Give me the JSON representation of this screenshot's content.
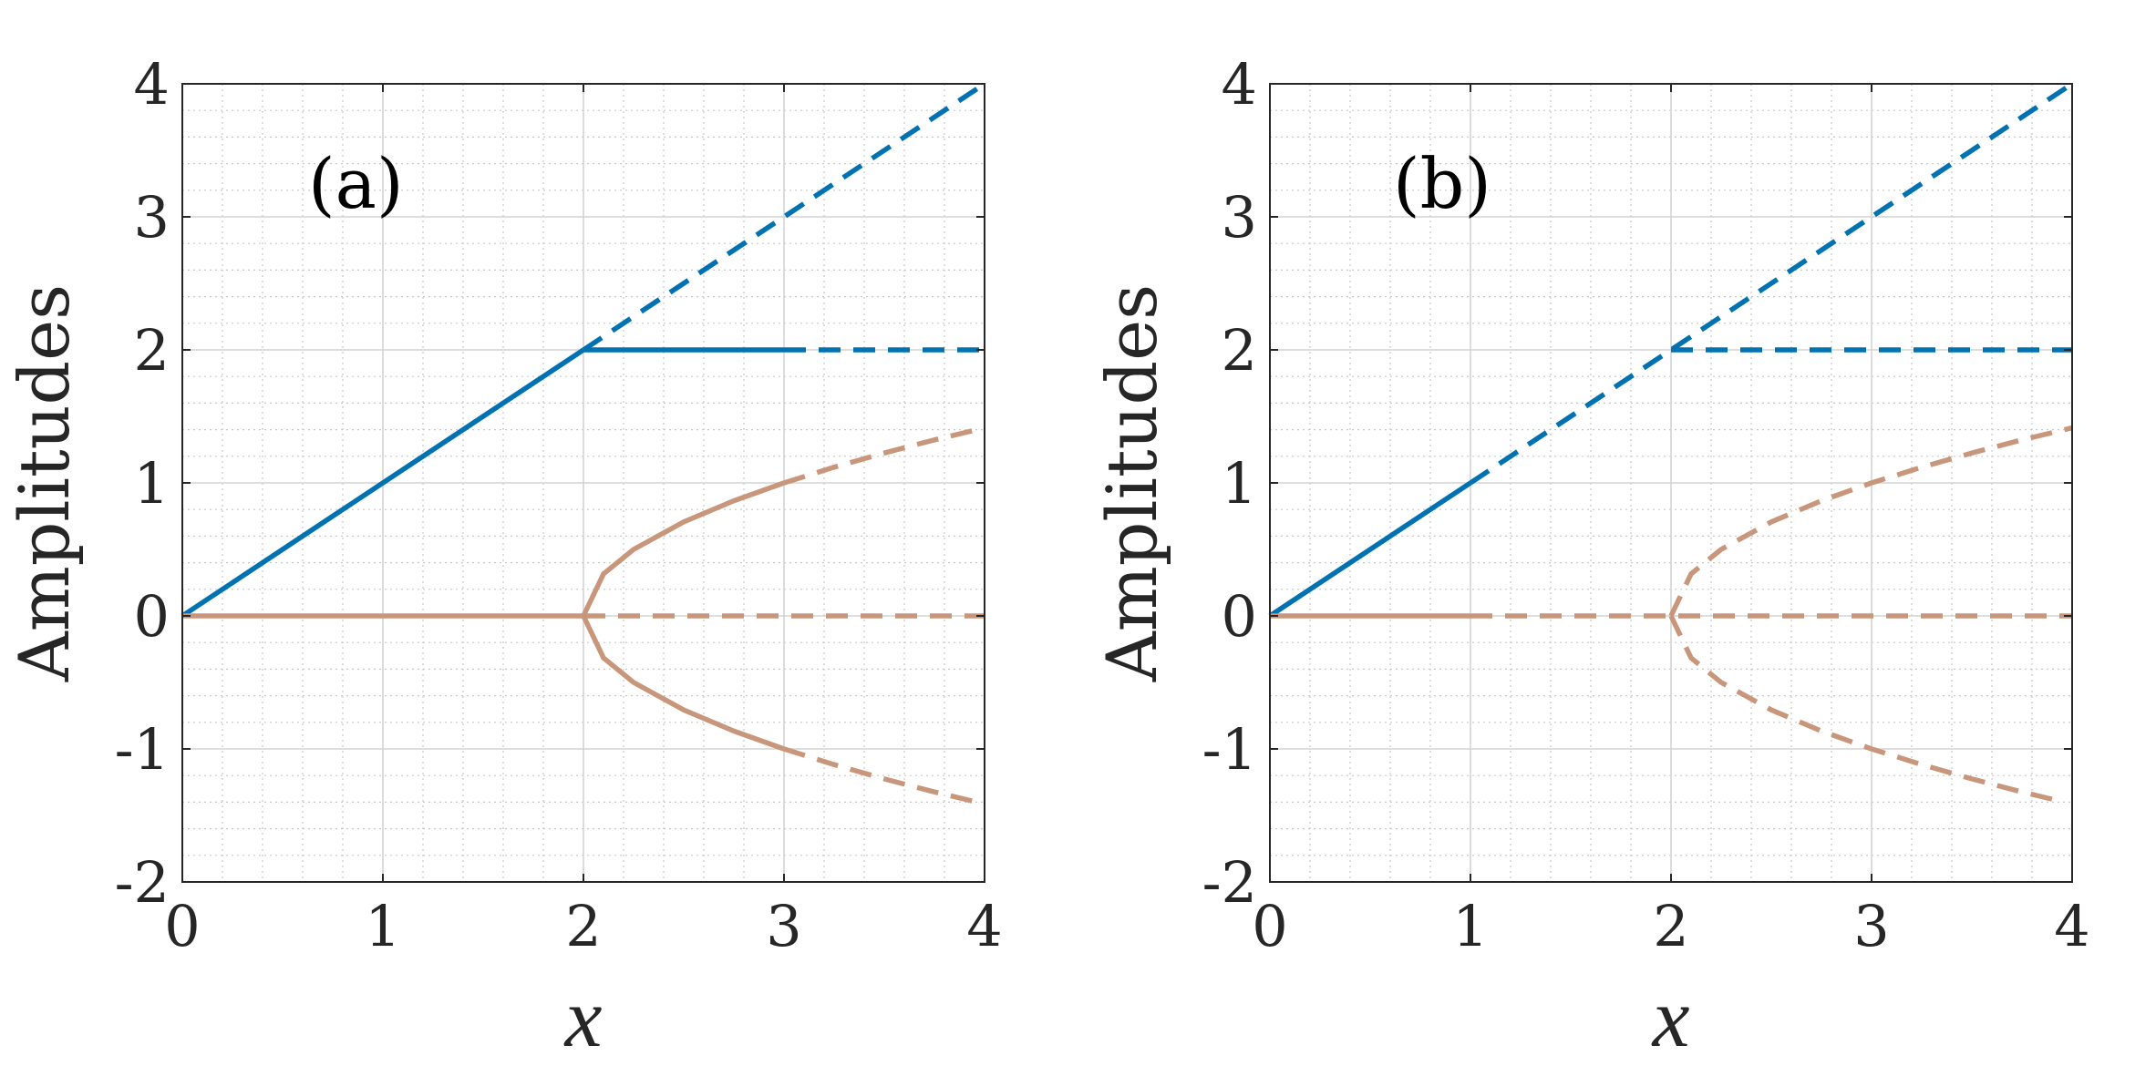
{
  "chart_data": [
    {
      "type": "line",
      "panel_label": "(a)",
      "xlabel": "x",
      "ylabel": "Amplitudes",
      "xlim": [
        0,
        4
      ],
      "ylim": [
        -2,
        4
      ],
      "xticks": [
        "0",
        "1",
        "2",
        "3",
        "4"
      ],
      "yticks": [
        "-2",
        "-1",
        "0",
        "1",
        "2",
        "3",
        "4"
      ],
      "grid": true,
      "minor_grid": true,
      "series": [
        {
          "color": "#0072B2",
          "style": "solid",
          "x": [
            0,
            2
          ],
          "y": [
            0,
            2
          ]
        },
        {
          "color": "#0072B2",
          "style": "dashed",
          "x": [
            2,
            4
          ],
          "y": [
            2,
            4
          ]
        },
        {
          "color": "#0072B2",
          "style": "solid",
          "x": [
            2,
            3
          ],
          "y": [
            2,
            2
          ]
        },
        {
          "color": "#0072B2",
          "style": "dashed",
          "x": [
            3,
            4
          ],
          "y": [
            2,
            2
          ]
        },
        {
          "color": "#C8967A",
          "style": "solid",
          "x": [
            0,
            2
          ],
          "y": [
            0,
            0
          ]
        },
        {
          "color": "#C8967A",
          "style": "dashed",
          "x": [
            2,
            4
          ],
          "y": [
            0,
            0
          ]
        },
        {
          "color": "#C8967A",
          "style": "solid",
          "x": [
            2,
            2.1,
            2.25,
            2.5,
            2.75,
            3
          ],
          "y": [
            0,
            0.316,
            0.5,
            0.707,
            0.866,
            1
          ]
        },
        {
          "color": "#C8967A",
          "style": "dashed",
          "x": [
            3,
            3.25,
            3.5,
            3.75,
            4
          ],
          "y": [
            1,
            1.118,
            1.225,
            1.323,
            1.414
          ]
        },
        {
          "color": "#C8967A",
          "style": "solid",
          "x": [
            2,
            2.1,
            2.25,
            2.5,
            2.75,
            3
          ],
          "y": [
            0,
            -0.316,
            -0.5,
            -0.707,
            -0.866,
            -1
          ]
        },
        {
          "color": "#C8967A",
          "style": "dashed",
          "x": [
            3,
            3.25,
            3.5,
            3.75,
            4
          ],
          "y": [
            -1,
            -1.118,
            -1.225,
            -1.323,
            -1.414
          ]
        }
      ]
    },
    {
      "type": "line",
      "panel_label": "(b)",
      "xlabel": "x",
      "ylabel": "Amplitudes",
      "xlim": [
        0,
        4
      ],
      "ylim": [
        -2,
        4
      ],
      "xticks": [
        "0",
        "1",
        "2",
        "3",
        "4"
      ],
      "yticks": [
        "-2",
        "-1",
        "0",
        "1",
        "2",
        "3",
        "4"
      ],
      "grid": true,
      "minor_grid": true,
      "series": [
        {
          "color": "#0072B2",
          "style": "solid",
          "x": [
            0,
            1
          ],
          "y": [
            0,
            1
          ]
        },
        {
          "color": "#0072B2",
          "style": "dashed",
          "x": [
            1,
            4
          ],
          "y": [
            1,
            4
          ]
        },
        {
          "color": "#0072B2",
          "style": "dashed",
          "x": [
            2,
            4
          ],
          "y": [
            2,
            2
          ]
        },
        {
          "color": "#C8967A",
          "style": "solid",
          "x": [
            0,
            1
          ],
          "y": [
            0,
            0
          ]
        },
        {
          "color": "#C8967A",
          "style": "dashed",
          "x": [
            1,
            4
          ],
          "y": [
            0,
            0
          ]
        },
        {
          "color": "#C8967A",
          "style": "dashed",
          "x": [
            2,
            2.1,
            2.25,
            2.5,
            2.75,
            3,
            3.25,
            3.5,
            3.75,
            4
          ],
          "y": [
            0,
            0.316,
            0.5,
            0.707,
            0.866,
            1,
            1.118,
            1.225,
            1.323,
            1.414
          ]
        },
        {
          "color": "#C8967A",
          "style": "dashed",
          "x": [
            2,
            2.1,
            2.25,
            2.5,
            2.75,
            3,
            3.25,
            3.5,
            3.75,
            3.95
          ],
          "y": [
            0,
            -0.316,
            -0.5,
            -0.707,
            -0.866,
            -1,
            -1.118,
            -1.225,
            -1.323,
            -1.396
          ]
        }
      ]
    }
  ]
}
